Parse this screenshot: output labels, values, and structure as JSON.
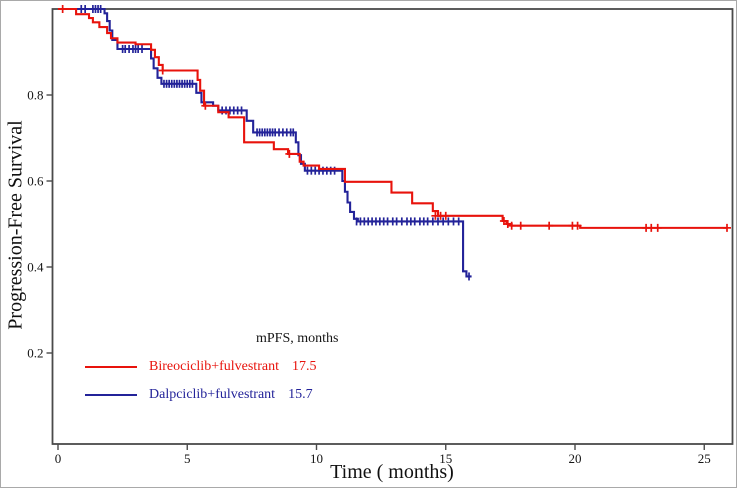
{
  "axes": {
    "x_label": "Time ( months)",
    "y_label": "Progression-Free Survival",
    "x_tick_labels": [
      "0",
      "5",
      "10",
      "15",
      "20",
      "25"
    ],
    "y_tick_labels": [
      "0.2",
      "0.4",
      "0.6",
      "0.8"
    ],
    "frame_color": "#4a4a4a"
  },
  "legend": {
    "header": "mPFS, months"
  },
  "chart_data": {
    "type": "line",
    "subtype": "kaplan-meier-step",
    "title": "",
    "xlabel": "Time ( months)",
    "ylabel": "Progression-Free Survival",
    "xlim": [
      -0.2,
      26.1
    ],
    "ylim": [
      -0.012,
      1.0
    ],
    "x_ticks": [
      0,
      5,
      10,
      15,
      20,
      25
    ],
    "y_ticks": [
      0.2,
      0.4,
      0.6,
      0.8
    ],
    "grid": false,
    "legend_position": "inside-lower-left",
    "series": [
      {
        "name": "Dalpciclib+fulvestrant",
        "median_label": "15.7",
        "color": "#232399",
        "censor_marker": "tick",
        "steps": [
          [
            0,
            1.0
          ],
          [
            1.8,
            0.99
          ],
          [
            1.9,
            0.972
          ],
          [
            2.0,
            0.95
          ],
          [
            2.1,
            0.928
          ],
          [
            2.3,
            0.907
          ],
          [
            3.6,
            0.885
          ],
          [
            3.7,
            0.862
          ],
          [
            3.85,
            0.84
          ],
          [
            4.0,
            0.826
          ],
          [
            5.35,
            0.805
          ],
          [
            5.55,
            0.783
          ],
          [
            6.0,
            0.775
          ],
          [
            6.2,
            0.764
          ],
          [
            7.3,
            0.74
          ],
          [
            7.55,
            0.713
          ],
          [
            9.2,
            0.69
          ],
          [
            9.3,
            0.66
          ],
          [
            9.4,
            0.64
          ],
          [
            9.55,
            0.624
          ],
          [
            11.0,
            0.6
          ],
          [
            11.1,
            0.575
          ],
          [
            11.2,
            0.55
          ],
          [
            11.3,
            0.528
          ],
          [
            11.45,
            0.512
          ],
          [
            11.6,
            0.506
          ],
          [
            15.67,
            0.39
          ],
          [
            15.8,
            0.378
          ]
        ],
        "end": 16.0,
        "censors": [
          [
            0.9,
            1.0
          ],
          [
            1.05,
            1.0
          ],
          [
            1.35,
            1.0
          ],
          [
            1.45,
            1.0
          ],
          [
            1.55,
            1.0
          ],
          [
            1.65,
            1.0
          ],
          [
            2.5,
            0.907
          ],
          [
            2.6,
            0.907
          ],
          [
            2.75,
            0.907
          ],
          [
            2.9,
            0.907
          ],
          [
            3.0,
            0.907
          ],
          [
            3.1,
            0.907
          ],
          [
            3.25,
            0.907
          ],
          [
            4.1,
            0.826
          ],
          [
            4.2,
            0.826
          ],
          [
            4.3,
            0.826
          ],
          [
            4.4,
            0.826
          ],
          [
            4.5,
            0.826
          ],
          [
            4.6,
            0.826
          ],
          [
            4.7,
            0.826
          ],
          [
            4.8,
            0.826
          ],
          [
            4.9,
            0.826
          ],
          [
            5.0,
            0.826
          ],
          [
            5.1,
            0.826
          ],
          [
            5.2,
            0.826
          ],
          [
            6.35,
            0.764
          ],
          [
            6.5,
            0.764
          ],
          [
            6.65,
            0.764
          ],
          [
            6.8,
            0.764
          ],
          [
            6.95,
            0.764
          ],
          [
            7.1,
            0.764
          ],
          [
            7.7,
            0.713
          ],
          [
            7.8,
            0.713
          ],
          [
            7.9,
            0.713
          ],
          [
            8.0,
            0.713
          ],
          [
            8.1,
            0.713
          ],
          [
            8.2,
            0.713
          ],
          [
            8.3,
            0.713
          ],
          [
            8.4,
            0.713
          ],
          [
            8.55,
            0.713
          ],
          [
            8.7,
            0.713
          ],
          [
            8.85,
            0.713
          ],
          [
            9.0,
            0.713
          ],
          [
            9.1,
            0.713
          ],
          [
            9.65,
            0.624
          ],
          [
            9.8,
            0.624
          ],
          [
            9.95,
            0.624
          ],
          [
            10.1,
            0.624
          ],
          [
            10.25,
            0.624
          ],
          [
            10.4,
            0.624
          ],
          [
            10.55,
            0.624
          ],
          [
            10.7,
            0.624
          ],
          [
            11.55,
            0.506
          ],
          [
            11.7,
            0.506
          ],
          [
            11.85,
            0.506
          ],
          [
            12.0,
            0.506
          ],
          [
            12.15,
            0.506
          ],
          [
            12.3,
            0.506
          ],
          [
            12.45,
            0.506
          ],
          [
            12.6,
            0.506
          ],
          [
            12.75,
            0.506
          ],
          [
            12.95,
            0.506
          ],
          [
            13.1,
            0.506
          ],
          [
            13.3,
            0.506
          ],
          [
            13.5,
            0.506
          ],
          [
            13.65,
            0.506
          ],
          [
            13.8,
            0.506
          ],
          [
            14.0,
            0.506
          ],
          [
            14.15,
            0.506
          ],
          [
            14.3,
            0.506
          ],
          [
            14.5,
            0.506
          ],
          [
            14.7,
            0.506
          ],
          [
            14.9,
            0.506
          ],
          [
            15.1,
            0.506
          ],
          [
            15.3,
            0.506
          ],
          [
            15.5,
            0.506
          ],
          [
            15.9,
            0.378
          ]
        ]
      },
      {
        "name": "Bireociclib+fulvestrant",
        "median_label": "17.5",
        "color": "#e8130c",
        "censor_marker": "plus",
        "steps": [
          [
            0,
            1.0
          ],
          [
            0.7,
            0.988
          ],
          [
            1.2,
            0.979
          ],
          [
            1.35,
            0.969
          ],
          [
            1.6,
            0.958
          ],
          [
            1.9,
            0.944
          ],
          [
            2.05,
            0.932
          ],
          [
            2.3,
            0.922
          ],
          [
            3.0,
            0.918
          ],
          [
            3.6,
            0.905
          ],
          [
            3.75,
            0.888
          ],
          [
            3.9,
            0.87
          ],
          [
            4.05,
            0.857
          ],
          [
            5.4,
            0.835
          ],
          [
            5.5,
            0.81
          ],
          [
            5.65,
            0.775
          ],
          [
            6.2,
            0.76
          ],
          [
            6.6,
            0.748
          ],
          [
            7.2,
            0.69
          ],
          [
            8.35,
            0.674
          ],
          [
            8.9,
            0.663
          ],
          [
            9.35,
            0.645
          ],
          [
            9.5,
            0.636
          ],
          [
            10.1,
            0.628
          ],
          [
            11.1,
            0.598
          ],
          [
            12.9,
            0.573
          ],
          [
            13.7,
            0.548
          ],
          [
            14.5,
            0.53
          ],
          [
            14.7,
            0.519
          ],
          [
            17.2,
            0.507
          ],
          [
            17.35,
            0.5
          ],
          [
            17.55,
            0.496
          ],
          [
            20.2,
            0.491
          ]
        ],
        "end": 25.88,
        "censors": [
          [
            0.18,
            1.0
          ],
          [
            4.05,
            0.857
          ],
          [
            5.7,
            0.775
          ],
          [
            8.95,
            0.663
          ],
          [
            14.6,
            0.519
          ],
          [
            14.8,
            0.519
          ],
          [
            15.0,
            0.519
          ],
          [
            17.25,
            0.507
          ],
          [
            17.4,
            0.5
          ],
          [
            17.55,
            0.496
          ],
          [
            17.9,
            0.496
          ],
          [
            19.0,
            0.496
          ],
          [
            19.9,
            0.496
          ],
          [
            20.1,
            0.496
          ],
          [
            22.75,
            0.491
          ],
          [
            22.95,
            0.491
          ],
          [
            23.2,
            0.491
          ],
          [
            25.88,
            0.491
          ]
        ]
      }
    ]
  }
}
